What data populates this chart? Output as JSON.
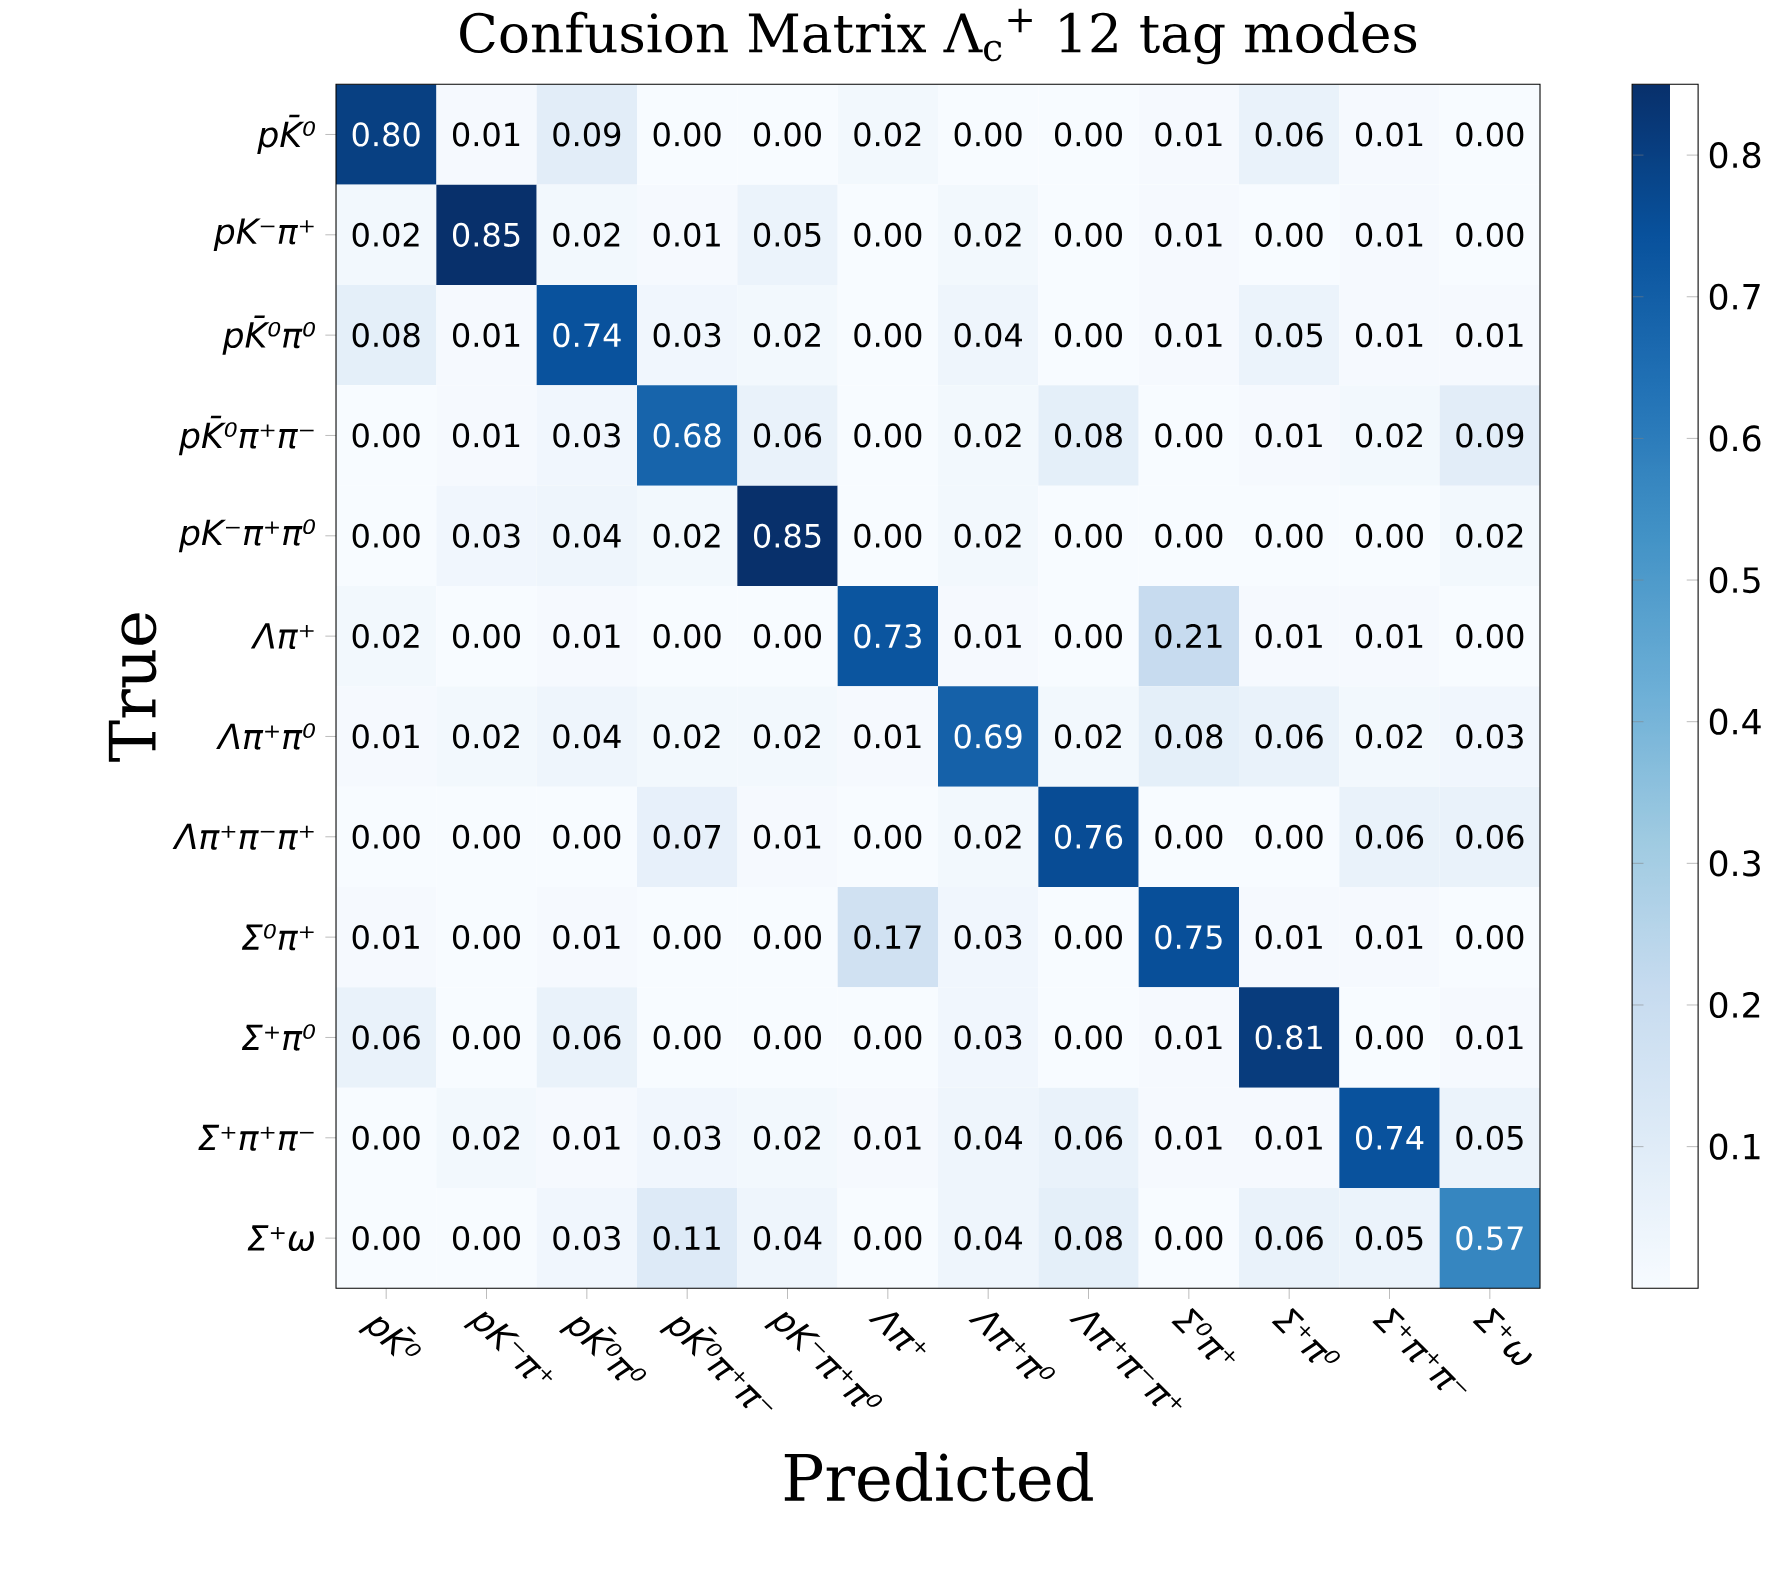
{
  "chart_data": {
    "type": "heatmap",
    "title": "Confusion Matrix Λ$_{c}$$^{+}$  12 tag modes",
    "xlabel": "Predicted",
    "ylabel": "True",
    "categories": [
      "pK̄⁰",
      "pK⁻π⁺",
      "pK̄⁰π⁰",
      "pK̄⁰π⁺π⁻",
      "pK⁻π⁺π⁰",
      "Λπ⁺",
      "Λπ⁺π⁰",
      "Λπ⁺π⁻π⁺",
      "Σ⁰π⁺",
      "Σ⁺π⁰",
      "Σ⁺π⁺π⁻",
      "Σ⁺ω"
    ],
    "y_categories": [
      "pK̄⁰",
      "pK⁻π⁺",
      "pK̄⁰π⁰",
      "pK̄⁰π⁺π⁻",
      "pK⁻π⁺π⁰",
      "Λπ⁺",
      "Λπ⁺π⁰",
      "Λπ⁺π⁻π⁺",
      "Σ⁰π⁺",
      "Σ⁺π⁰",
      "Σ⁺π⁺π⁻",
      "Σ⁺ω"
    ],
    "cells": [
      [
        0.8,
        0.01,
        0.09,
        0.0,
        0.0,
        0.02,
        0.0,
        0.0,
        0.01,
        0.06,
        0.01,
        0.0
      ],
      [
        0.02,
        0.85,
        0.02,
        0.01,
        0.05,
        0.0,
        0.02,
        0.0,
        0.01,
        0.0,
        0.01,
        0.0
      ],
      [
        0.08,
        0.01,
        0.74,
        0.03,
        0.02,
        0.0,
        0.04,
        0.0,
        0.01,
        0.05,
        0.01,
        0.01
      ],
      [
        0.0,
        0.01,
        0.03,
        0.68,
        0.06,
        0.0,
        0.02,
        0.08,
        0.0,
        0.01,
        0.02,
        0.09
      ],
      [
        0.0,
        0.03,
        0.04,
        0.02,
        0.85,
        0.0,
        0.02,
        0.0,
        0.0,
        0.0,
        0.0,
        0.02
      ],
      [
        0.02,
        0.0,
        0.01,
        0.0,
        0.0,
        0.73,
        0.01,
        0.0,
        0.21,
        0.01,
        0.01,
        0.0
      ],
      [
        0.01,
        0.02,
        0.04,
        0.02,
        0.02,
        0.01,
        0.69,
        0.02,
        0.08,
        0.06,
        0.02,
        0.03
      ],
      [
        0.0,
        0.0,
        0.0,
        0.07,
        0.01,
        0.0,
        0.02,
        0.76,
        0.0,
        0.0,
        0.06,
        0.06
      ],
      [
        0.01,
        0.0,
        0.01,
        0.0,
        0.0,
        0.17,
        0.03,
        0.0,
        0.75,
        0.01,
        0.01,
        0.0
      ],
      [
        0.06,
        0.0,
        0.06,
        0.0,
        0.0,
        0.0,
        0.03,
        0.0,
        0.01,
        0.81,
        0.0,
        0.01
      ],
      [
        0.0,
        0.02,
        0.01,
        0.03,
        0.02,
        0.01,
        0.04,
        0.06,
        0.01,
        0.01,
        0.74,
        0.05
      ],
      [
        0.0,
        0.0,
        0.03,
        0.11,
        0.04,
        0.0,
        0.04,
        0.08,
        0.0,
        0.06,
        0.05,
        0.57
      ]
    ],
    "cell_labels": [
      [
        "0.80",
        "0.01",
        "0.09",
        "0.00",
        "0.00",
        "0.02",
        "0.00",
        "0.00",
        "0.01",
        "0.06",
        "0.01",
        "0.00"
      ],
      [
        "0.02",
        "0.85",
        "0.02",
        "0.01",
        "0.05",
        "0.00",
        "0.02",
        "0.00",
        "0.01",
        "0.00",
        "0.01",
        "0.00"
      ],
      [
        "0.08",
        "0.01",
        "0.74",
        "0.03",
        "0.02",
        "0.00",
        "0.04",
        "0.00",
        "0.01",
        "0.05",
        "0.01",
        "0.01"
      ],
      [
        "0.00",
        "0.01",
        "0.03",
        "0.68",
        "0.06",
        "0.00",
        "0.02",
        "0.08",
        "0.00",
        "0.01",
        "0.02",
        "0.09"
      ],
      [
        "0.00",
        "0.03",
        "0.04",
        "0.02",
        "0.85",
        "0.00",
        "0.02",
        "0.00",
        "0.00",
        "0.00",
        "0.00",
        "0.02"
      ],
      [
        "0.02",
        "0.00",
        "0.01",
        "0.00",
        "0.00",
        "0.73",
        "0.01",
        "0.00",
        "0.21",
        "0.01",
        "0.01",
        "0.00"
      ],
      [
        "0.01",
        "0.02",
        "0.04",
        "0.02",
        "0.02",
        "0.01",
        "0.69",
        "0.02",
        "0.08",
        "0.06",
        "0.02",
        "0.03"
      ],
      [
        "0.00",
        "0.00",
        "0.00",
        "0.07",
        "0.01",
        "0.00",
        "0.02",
        "0.76",
        "0.00",
        "0.00",
        "0.06",
        "0.06"
      ],
      [
        "0.01",
        "0.00",
        "0.01",
        "0.00",
        "0.00",
        "0.17",
        "0.03",
        "0.00",
        "0.75",
        "0.01",
        "0.01",
        "0.00"
      ],
      [
        "0.06",
        "0.00",
        "0.06",
        "0.00",
        "0.00",
        "0.00",
        "0.03",
        "0.00",
        "0.01",
        "0.81",
        "0.00",
        "0.01"
      ],
      [
        "0.00",
        "0.02",
        "0.01",
        "0.03",
        "0.02",
        "0.01",
        "0.04",
        "0.06",
        "0.01",
        "0.01",
        "0.74",
        "0.05"
      ],
      [
        "0.00",
        "0.00",
        "0.03",
        "0.11",
        "0.04",
        "0.00",
        "0.04",
        "0.08",
        "0.00",
        "0.06",
        "0.05",
        "0.57"
      ]
    ],
    "clim": [
      0.0,
      0.85
    ],
    "cticks": [
      0.1,
      0.2,
      0.3,
      0.4,
      0.5,
      0.6,
      0.7,
      0.8
    ]
  }
}
